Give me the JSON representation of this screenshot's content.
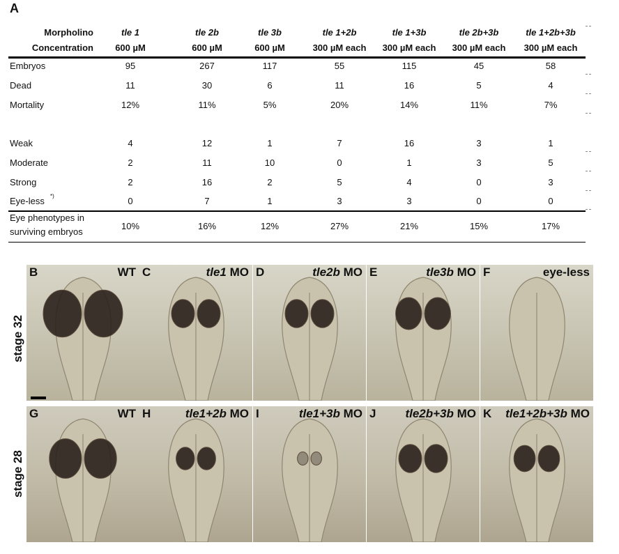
{
  "panel_a_label": "A",
  "table": {
    "header_row1_label": "Morpholino",
    "header_row2_label": "Concentration",
    "columns": [
      {
        "name": "tle 1",
        "conc": "600 µM"
      },
      {
        "name": "tle 2b",
        "conc": "600 µM"
      },
      {
        "name": "tle 3b",
        "conc": "600 µM"
      },
      {
        "name": "tle 1+2b",
        "conc": "300 µM each"
      },
      {
        "name": "tle 1+3b",
        "conc": "300 µM each"
      },
      {
        "name": "tle 2b+3b",
        "conc": "300 µM each"
      },
      {
        "name": "tle 1+2b+3b",
        "conc": "300 µM each"
      }
    ],
    "rows": [
      {
        "label": "Embryos",
        "values": [
          "95",
          "267",
          "117",
          "55",
          "115",
          "45",
          "58"
        ]
      },
      {
        "label": "Dead",
        "values": [
          "11",
          "30",
          "6",
          "11",
          "16",
          "5",
          "4"
        ]
      },
      {
        "label": "Mortality",
        "values": [
          "12%",
          "11%",
          "5%",
          "20%",
          "14%",
          "11%",
          "7%"
        ]
      },
      {
        "label": "Weak",
        "values": [
          "4",
          "12",
          "1",
          "7",
          "16",
          "3",
          "1"
        ]
      },
      {
        "label": "Moderate",
        "values": [
          "2",
          "11",
          "10",
          "0",
          "1",
          "3",
          "5"
        ]
      },
      {
        "label": "Strong",
        "values": [
          "2",
          "16",
          "2",
          "5",
          "4",
          "0",
          "3"
        ]
      },
      {
        "label": "Eye-less",
        "sup": "*)",
        "values": [
          "0",
          "7",
          "1",
          "3",
          "3",
          "0",
          "0"
        ]
      }
    ],
    "summary": {
      "label_line1": "Eye phenotypes in",
      "label_line2": "surviving embryos",
      "values": [
        "10%",
        "16%",
        "12%",
        "27%",
        "21%",
        "15%",
        "17%"
      ]
    }
  },
  "stages": {
    "top": "stage 32",
    "bottom": "stage 28"
  },
  "panels": [
    {
      "letter": "B",
      "gene": "",
      "suffix": "WT"
    },
    {
      "letter": "C",
      "gene": "tle1",
      "suffix": " MO"
    },
    {
      "letter": "D",
      "gene": "tle2b",
      "suffix": " MO"
    },
    {
      "letter": "E",
      "gene": "tle3b",
      "suffix": " MO"
    },
    {
      "letter": "F",
      "gene": "",
      "suffix": "eye-less"
    },
    {
      "letter": "G",
      "gene": "",
      "suffix": "WT"
    },
    {
      "letter": "H",
      "gene": "tle1+2b",
      "suffix": " MO"
    },
    {
      "letter": "I",
      "gene": "tle1+3b",
      "suffix": " MO"
    },
    {
      "letter": "J",
      "gene": "tle2b+3b",
      "suffix": " MO"
    },
    {
      "letter": "K",
      "gene": "tle1+2b+3b",
      "suffix": " MO"
    }
  ],
  "colors": {
    "eye_dark": "#2a211c",
    "tissue": "#c9c2ad",
    "background": "#d6d3c4"
  }
}
